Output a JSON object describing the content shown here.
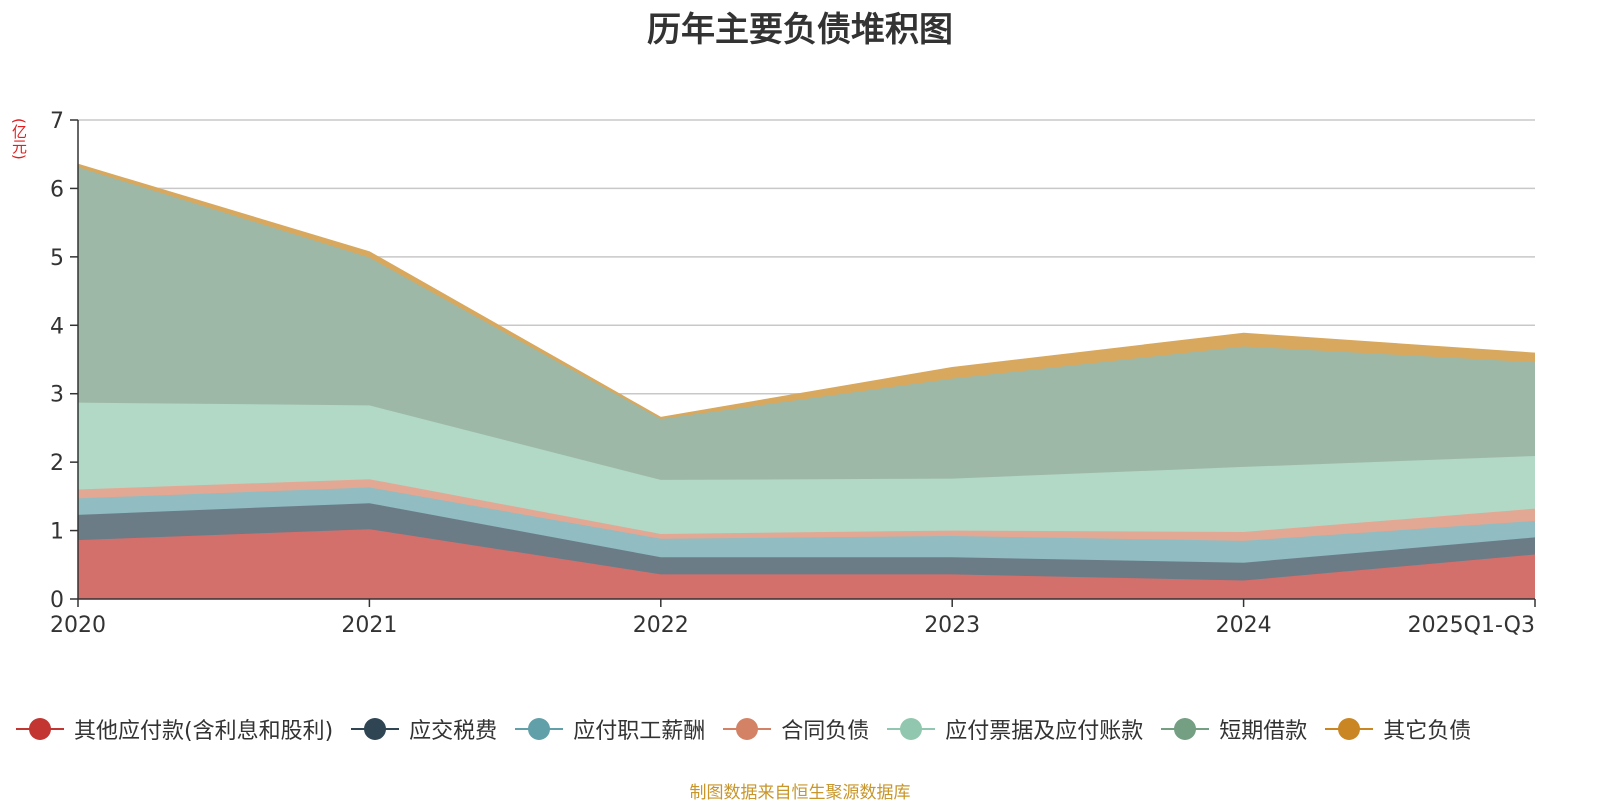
{
  "chart_data": {
    "type": "area",
    "stacked": true,
    "title": "历年主要负债堆积图",
    "ylabel": "(亿元)",
    "xlabel": "",
    "categories": [
      "2020",
      "2021",
      "2022",
      "2023",
      "2024",
      "2025Q1-Q3"
    ],
    "ylim": [
      0,
      7
    ],
    "yticks": [
      0,
      1,
      2,
      3,
      4,
      5,
      6,
      7
    ],
    "grid": true,
    "legend_position": "bottom",
    "series": [
      {
        "name": "其他应付款(含利息和股利)",
        "color": "#c23531",
        "fill": "#d4706c",
        "values": [
          0.86,
          1.02,
          0.36,
          0.36,
          0.27,
          0.65
        ]
      },
      {
        "name": "应交税费",
        "color": "#2f4554",
        "fill": "#6b7c87",
        "values": [
          0.37,
          0.38,
          0.25,
          0.25,
          0.26,
          0.25
        ]
      },
      {
        "name": "应付职工薪酬",
        "color": "#61a0a8",
        "fill": "#90bcc2",
        "values": [
          0.24,
          0.23,
          0.27,
          0.31,
          0.32,
          0.24
        ]
      },
      {
        "name": "合同负债",
        "color": "#d48265",
        "fill": "#e2a893",
        "values": [
          0.13,
          0.12,
          0.07,
          0.08,
          0.13,
          0.18
        ]
      },
      {
        "name": "应付票据及应付账款",
        "color": "#91c7ae",
        "fill": "#b2d8c6",
        "values": [
          1.27,
          1.08,
          0.79,
          0.76,
          0.95,
          0.77
        ]
      },
      {
        "name": "短期借款",
        "color": "#749f83",
        "fill": "#9db8a6",
        "values": [
          3.44,
          2.16,
          0.89,
          1.46,
          1.76,
          1.37
        ]
      },
      {
        "name": "其它负债",
        "color": "#ca8622",
        "fill": "#d8a85e",
        "values": [
          0.04,
          0.08,
          0.02,
          0.16,
          0.19,
          0.13
        ]
      }
    ]
  },
  "footer": {
    "source_note": "制图数据来自恒生聚源数据库"
  }
}
